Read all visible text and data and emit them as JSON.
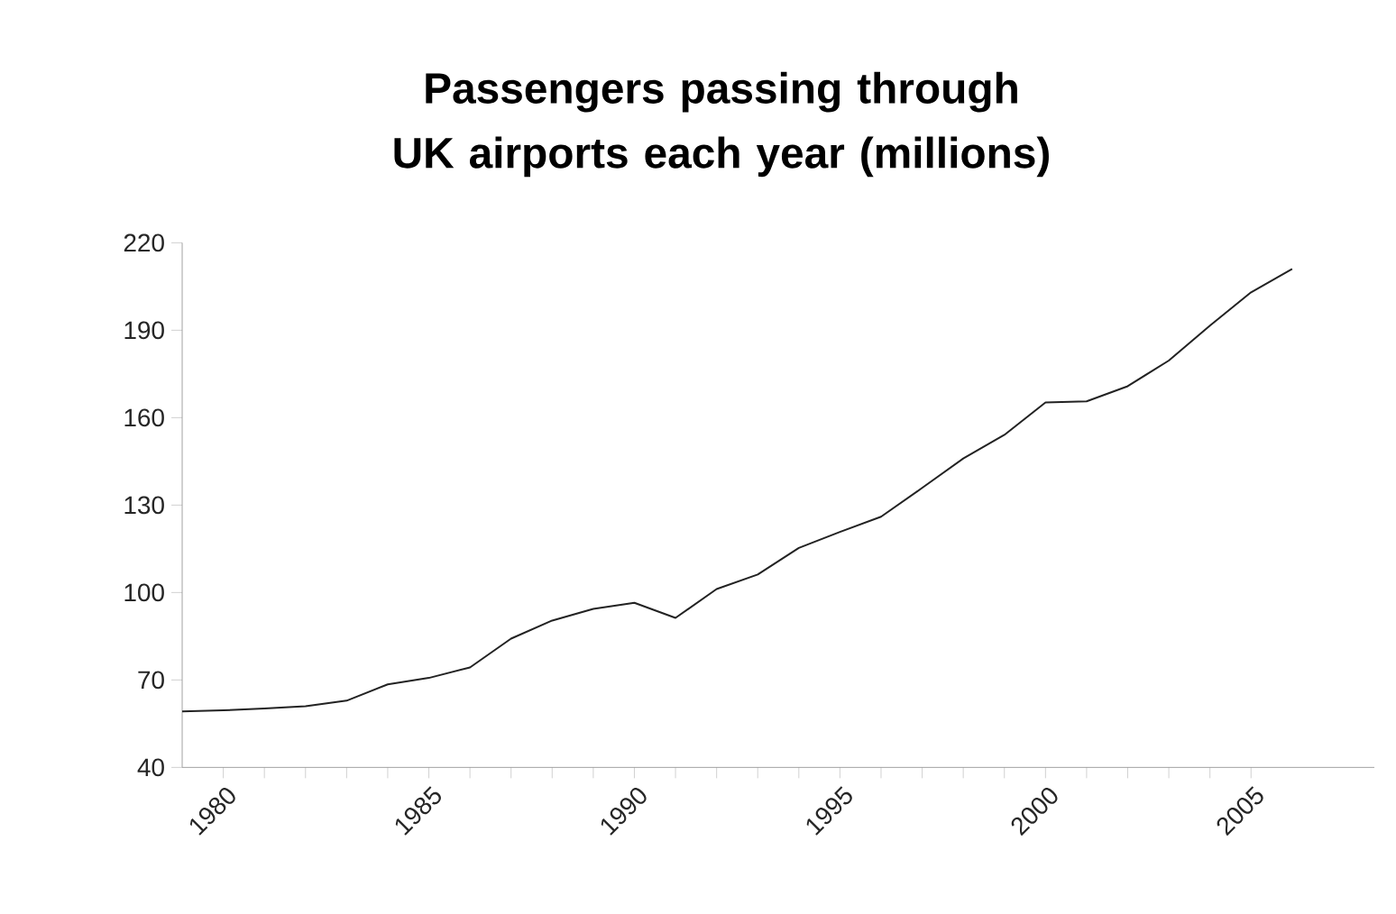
{
  "chart_data": {
    "type": "line",
    "title": "Passengers passing through UK airports each year (millions)",
    "x": [
      1979,
      1980,
      1981,
      1982,
      1983,
      1984,
      1985,
      1986,
      1987,
      1988,
      1989,
      1990,
      1991,
      1992,
      1993,
      1994,
      1995,
      1996,
      1997,
      1998,
      1999,
      2000,
      2001,
      2002,
      2003,
      2004,
      2005,
      2006
    ],
    "series": [
      {
        "color": "#222222",
        "values": [
          59.2,
          59.6,
          60.2,
          61,
          62.9,
          68.5,
          70.7,
          74.3,
          84.2,
          90.4,
          94.4,
          96.5,
          91.3,
          101.2,
          106.2,
          115.3,
          120.8,
          126,
          135.9,
          146,
          154.1,
          165.2,
          165.6,
          170.8,
          179.6,
          191.6,
          203,
          211
        ]
      }
    ],
    "xlim": [
      1979,
      2008
    ],
    "xticks": [
      1980,
      1985,
      1990,
      1995,
      2000,
      2005
    ],
    "ylim": [
      40,
      220
    ],
    "yticks": [
      40,
      70,
      100,
      130,
      160,
      190,
      220
    ],
    "grid": false,
    "marker": "none",
    "line_style": "solid"
  }
}
